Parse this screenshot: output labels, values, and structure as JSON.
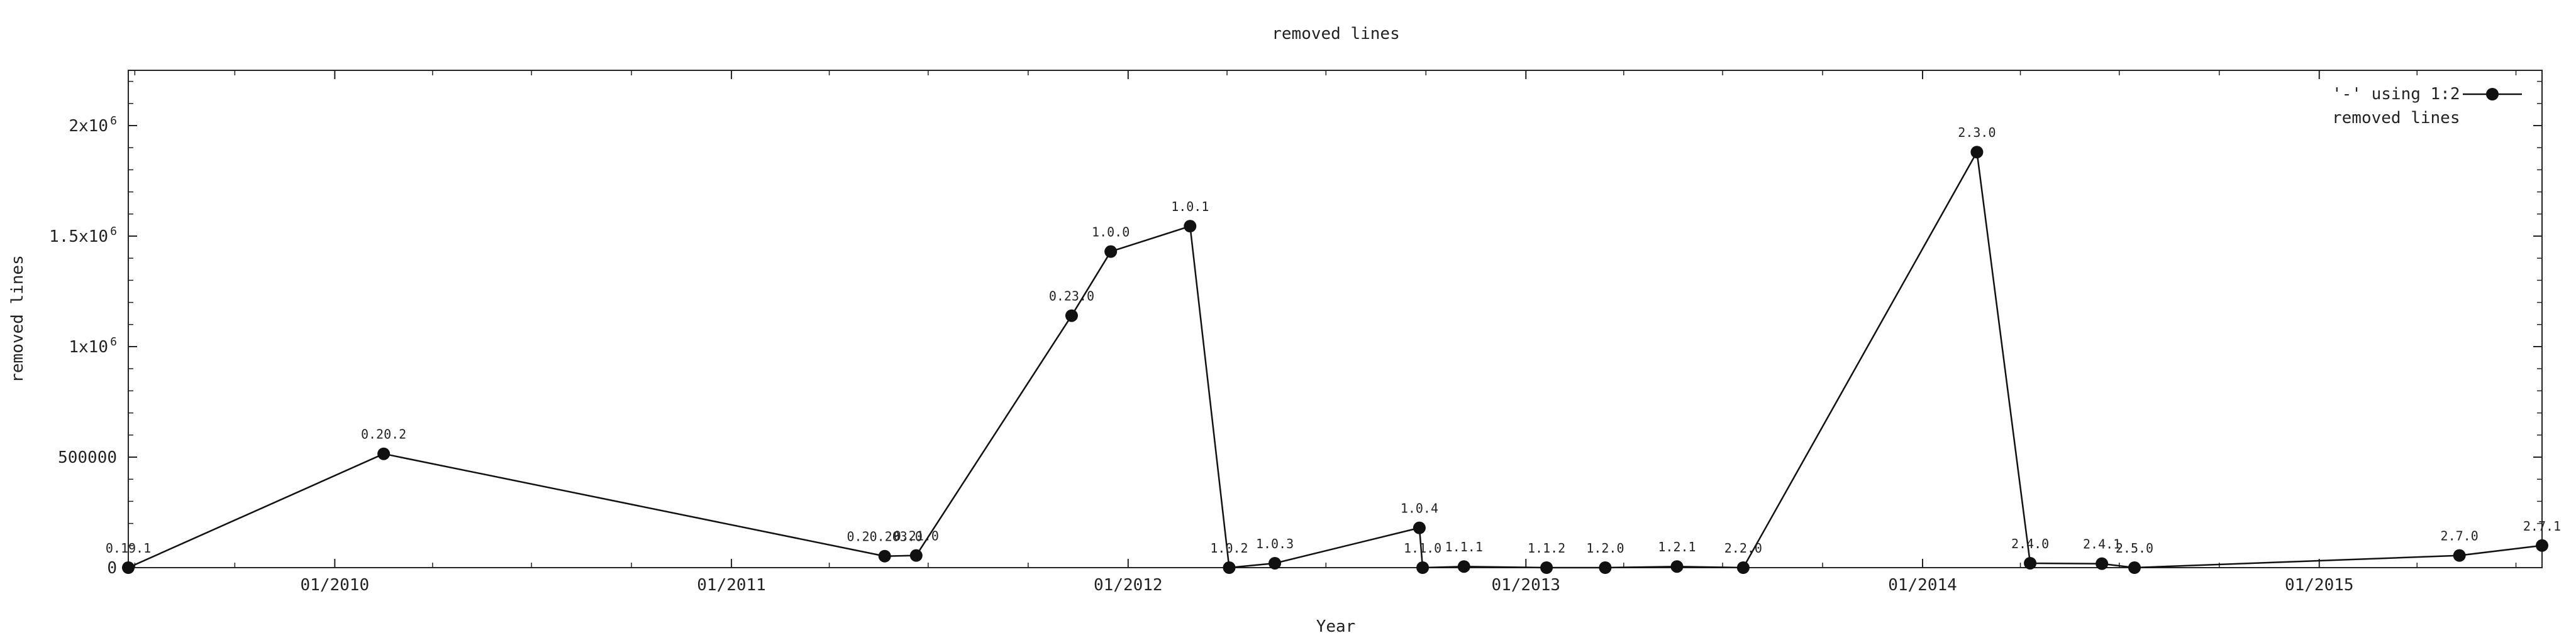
{
  "chart_data": {
    "type": "line",
    "title": "removed lines",
    "xlabel": "Year",
    "ylabel": "removed lines",
    "xlim": [
      "2009-06-25",
      "2015-07-25"
    ],
    "ylim": [
      0,
      2250000
    ],
    "grid": false,
    "legend_position": "top-right",
    "legend": {
      "line1": "'-' using 1:2",
      "line2": "removed lines"
    },
    "x_ticks": [
      {
        "date": "2010-01-01",
        "label": "01/2010"
      },
      {
        "date": "2011-01-01",
        "label": "01/2011"
      },
      {
        "date": "2012-01-01",
        "label": "01/2012"
      },
      {
        "date": "2013-01-01",
        "label": "01/2013"
      },
      {
        "date": "2014-01-01",
        "label": "01/2014"
      },
      {
        "date": "2015-01-01",
        "label": "01/2015"
      }
    ],
    "y_ticks": [
      {
        "value": 0,
        "label": "0",
        "sup": ""
      },
      {
        "value": 500000,
        "label": "500000",
        "sup": ""
      },
      {
        "value": 1000000,
        "label": "1x10",
        "sup": "6"
      },
      {
        "value": 1500000,
        "label": "1.5x10",
        "sup": "6"
      },
      {
        "value": 2000000,
        "label": "2x10",
        "sup": "6"
      }
    ],
    "series": [
      {
        "name": "removed lines",
        "points": [
          {
            "date": "2009-06-25",
            "value": 0,
            "label": "0.19.1"
          },
          {
            "date": "2010-02-15",
            "value": 515000,
            "label": "0.20.2"
          },
          {
            "date": "2011-05-22",
            "value": 52000,
            "label": "0.20.203.0"
          },
          {
            "date": "2011-06-20",
            "value": 55000,
            "label": "0.21.0"
          },
          {
            "date": "2011-11-10",
            "value": 1140000,
            "label": "0.23.0"
          },
          {
            "date": "2011-12-16",
            "value": 1430000,
            "label": "1.0.0"
          },
          {
            "date": "2012-02-27",
            "value": 1545000,
            "label": "1.0.1"
          },
          {
            "date": "2012-04-03",
            "value": 0,
            "label": "1.0.2"
          },
          {
            "date": "2012-05-15",
            "value": 20000,
            "label": "1.0.3"
          },
          {
            "date": "2012-09-25",
            "value": 180000,
            "label": "1.0.4"
          },
          {
            "date": "2012-09-28",
            "value": 0,
            "label": "1.1.0"
          },
          {
            "date": "2012-11-05",
            "value": 5000,
            "label": "1.1.1"
          },
          {
            "date": "2013-01-20",
            "value": 0,
            "label": "1.1.2"
          },
          {
            "date": "2013-03-15",
            "value": 0,
            "label": "1.2.0"
          },
          {
            "date": "2013-05-20",
            "value": 5000,
            "label": "1.2.1"
          },
          {
            "date": "2013-07-20",
            "value": 0,
            "label": "2.2.0"
          },
          {
            "date": "2014-02-20",
            "value": 1880000,
            "label": "2.3.0"
          },
          {
            "date": "2014-04-10",
            "value": 20000,
            "label": "2.4.0"
          },
          {
            "date": "2014-06-15",
            "value": 18000,
            "label": "2.4.1"
          },
          {
            "date": "2014-07-15",
            "value": 0,
            "label": "2.5.0"
          },
          {
            "date": "2015-05-10",
            "value": 55000,
            "label": "2.7.0"
          },
          {
            "date": "2015-07-25",
            "value": 100000,
            "label": "2.7.1"
          }
        ]
      }
    ]
  }
}
